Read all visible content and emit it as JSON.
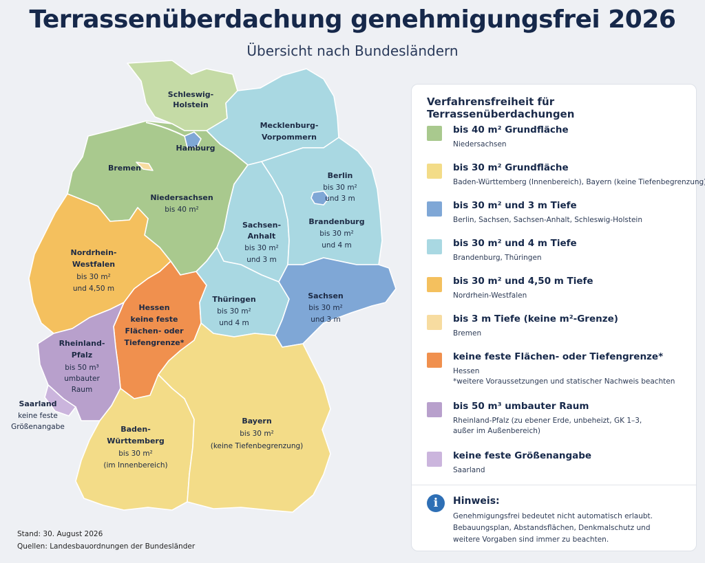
{
  "header": {
    "title": "Terrassenüberdachung genehmigungsfrei 2026",
    "subtitle": "Übersicht nach Bundesländern"
  },
  "colors": {
    "green": "#a9c98e",
    "lightgreen": "#c5dba6",
    "yellow": "#f3dc88",
    "blue": "#7fa7d6",
    "teal": "#a9d8e2",
    "orange_yellow": "#f4c05e",
    "light_yellow": "#f7dca0",
    "orange": "#f0904e",
    "purple": "#b8a0cc",
    "light_purple": "#cbb5dd"
  },
  "map": {
    "states": [
      {
        "name": "Schleswig-Holstein",
        "lines": [
          "Schleswig-",
          "Holstein"
        ],
        "detail": []
      },
      {
        "name": "Hamburg",
        "lines": [
          "Hamburg"
        ],
        "detail": []
      },
      {
        "name": "Bremen",
        "lines": [
          "Bremen"
        ],
        "detail": []
      },
      {
        "name": "Mecklenburg-Vorpommern",
        "lines": [
          "Mecklenburg-",
          "Vorpommern"
        ],
        "detail": []
      },
      {
        "name": "Niedersachsen",
        "lines": [
          "Niedersachsen"
        ],
        "detail": [
          "bis 40 m²"
        ]
      },
      {
        "name": "Berlin",
        "lines": [
          "Berlin"
        ],
        "detail": [
          "bis 30 m²",
          "und 3 m"
        ]
      },
      {
        "name": "Brandenburg",
        "lines": [
          "Brandenburg"
        ],
        "detail": [
          "bis 30 m²",
          "und 4 m"
        ]
      },
      {
        "name": "Sachsen-Anhalt",
        "lines": [
          "Sachsen-",
          "Anhalt"
        ],
        "detail": [
          "bis 30 m²",
          "und 3 m"
        ]
      },
      {
        "name": "Nordrhein-Westfalen",
        "lines": [
          "Nordrhein-",
          "Westfalen"
        ],
        "detail": [
          "bis 30 m²",
          "und 4,50 m"
        ]
      },
      {
        "name": "Hessen",
        "lines": [
          "Hessen",
          "keine feste",
          "Flächen- oder",
          "Tiefengrenze*"
        ],
        "detail": []
      },
      {
        "name": "Thüringen",
        "lines": [
          "Thüringen"
        ],
        "detail": [
          "bis 30 m²",
          "und 4 m"
        ]
      },
      {
        "name": "Sachsen",
        "lines": [
          "Sachsen"
        ],
        "detail": [
          "bis 30 m²",
          "und 3 m"
        ]
      },
      {
        "name": "Rheinland-Pfalz",
        "lines": [
          "Rheinland-",
          "Pfalz"
        ],
        "detail": [
          "bis 50 m³",
          "umbauter",
          "Raum"
        ]
      },
      {
        "name": "Saarland",
        "lines": [
          "Saarland"
        ],
        "detail": [
          "keine feste",
          "Größenangabe"
        ]
      },
      {
        "name": "Baden-Württemberg",
        "lines": [
          "Baden-",
          "Württemberg"
        ],
        "detail": [
          "bis 30 m²",
          "(im Innenbereich)"
        ]
      },
      {
        "name": "Bayern",
        "lines": [
          "Bayern"
        ],
        "detail": [
          "bis 30 m²",
          "(keine Tiefenbegrenzung)"
        ]
      }
    ]
  },
  "legend": {
    "title": "Verfahrensfreiheit für Terrassenüberdachungen",
    "items": [
      {
        "heading": "bis 40 m² Grundfläche",
        "sub": [
          "Niedersachsen"
        ],
        "color": "#a9c98e"
      },
      {
        "heading": "bis 30 m² Grundfläche",
        "sub": [
          "Baden-Württemberg (Innenbereich), Bayern (keine Tiefenbegrenzung)"
        ],
        "color": "#f3dc88"
      },
      {
        "heading": "bis 30 m² und 3 m Tiefe",
        "sub": [
          "Berlin, Sachsen, Sachsen-Anhalt, Schleswig-Holstein"
        ],
        "color": "#7fa7d6"
      },
      {
        "heading": "bis 30 m² und 4 m Tiefe",
        "sub": [
          "Brandenburg, Thüringen"
        ],
        "color": "#a9d8e2"
      },
      {
        "heading": "bis 30 m² und 4,50 m Tiefe",
        "sub": [
          "Nordrhein-Westfalen"
        ],
        "color": "#f4c05e"
      },
      {
        "heading": "bis 3 m Tiefe (keine m²-Grenze)",
        "sub": [
          "Bremen"
        ],
        "color": "#f7dca0"
      },
      {
        "heading": "keine feste Flächen- oder Tiefengrenze*",
        "sub": [
          "Hessen",
          "*weitere Voraussetzungen und statischer Nachweis beachten"
        ],
        "color": "#f0904e"
      },
      {
        "heading": "bis 50 m³ umbauter Raum",
        "sub": [
          "Rheinland-Pfalz (zu ebener Erde, unbeheizt, GK 1–3,",
          "außer im Außenbereich)"
        ],
        "color": "#b8a0cc"
      },
      {
        "heading": "keine feste Größenangabe",
        "sub": [
          "Saarland"
        ],
        "color": "#cbb5dd"
      }
    ],
    "note": {
      "icon": "info-icon",
      "title": "Hinweis:",
      "lines": [
        "Genehmigungsfrei bedeutet nicht automatisch erlaubt.",
        "Bebauungsplan, Abstandsflächen, Denkmalschutz und",
        "weitere Vorgaben sind immer zu beachten."
      ]
    }
  },
  "footer": {
    "date": "Stand: 30. August 2026",
    "sources": "Quellen: Landesbauordnungen der Bundesländer"
  }
}
